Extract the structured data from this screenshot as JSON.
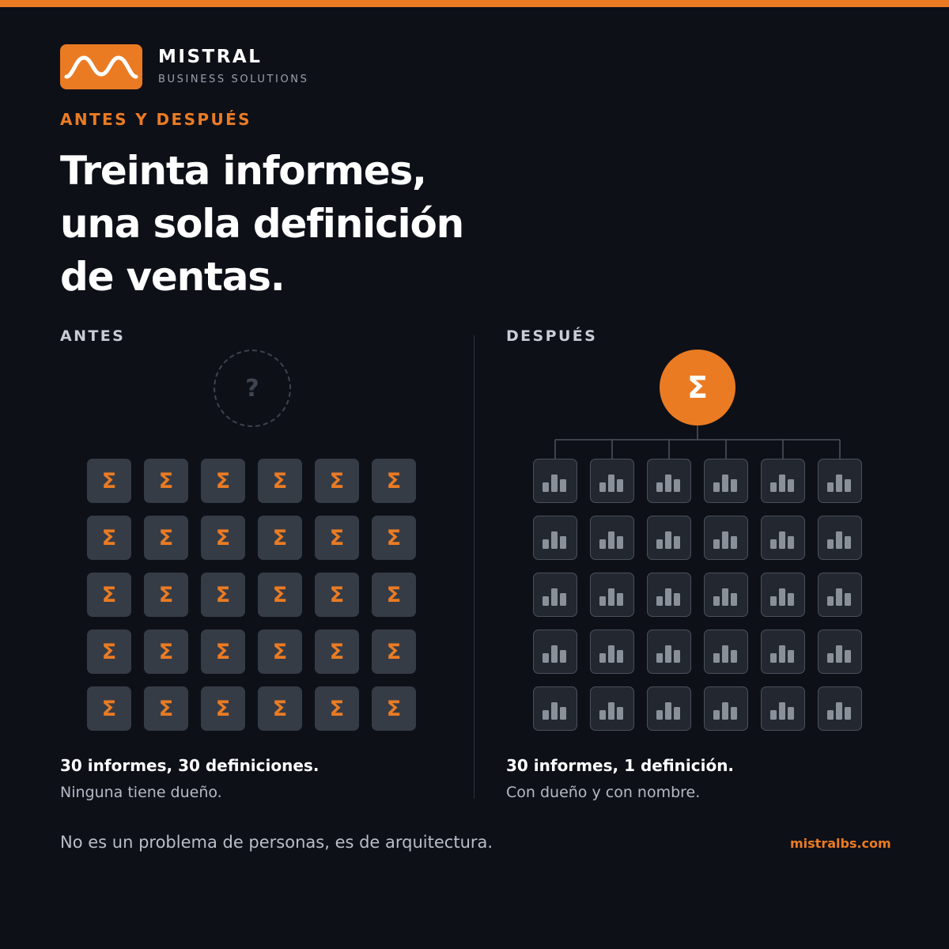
{
  "colors": {
    "accent": "#ea7b23",
    "background": "#0e1018",
    "tile_before": "#363c46",
    "tile_after": "#232830",
    "bar": "#8a909a",
    "connector": "#4d535c"
  },
  "brand": {
    "name": "MISTRAL",
    "subtitle": "BUSINESS SOLUTIONS",
    "logo_icon": "wave-icon"
  },
  "eyebrow": "ANTES Y DESPUÉS",
  "headline": [
    "Treinta informes,",
    "una sola definición",
    "de ventas."
  ],
  "before": {
    "label": "ANTES",
    "placeholder_symbol": "?",
    "tile_symbol": "Σ",
    "rows": 5,
    "cols": 6,
    "summary": "30 informes, 30 definiciones.",
    "note": "Ninguna tiene dueño."
  },
  "after": {
    "label": "DESPUÉS",
    "hub_symbol": "Σ",
    "tile_icon": "bar-chart-icon",
    "rows": 5,
    "cols": 6,
    "summary": "30 informes, 1 definición.",
    "note": "Con dueño y con nombre."
  },
  "footer": {
    "text": "No es un problema de personas, es de arquitectura.",
    "url": "mistralbs.com"
  }
}
